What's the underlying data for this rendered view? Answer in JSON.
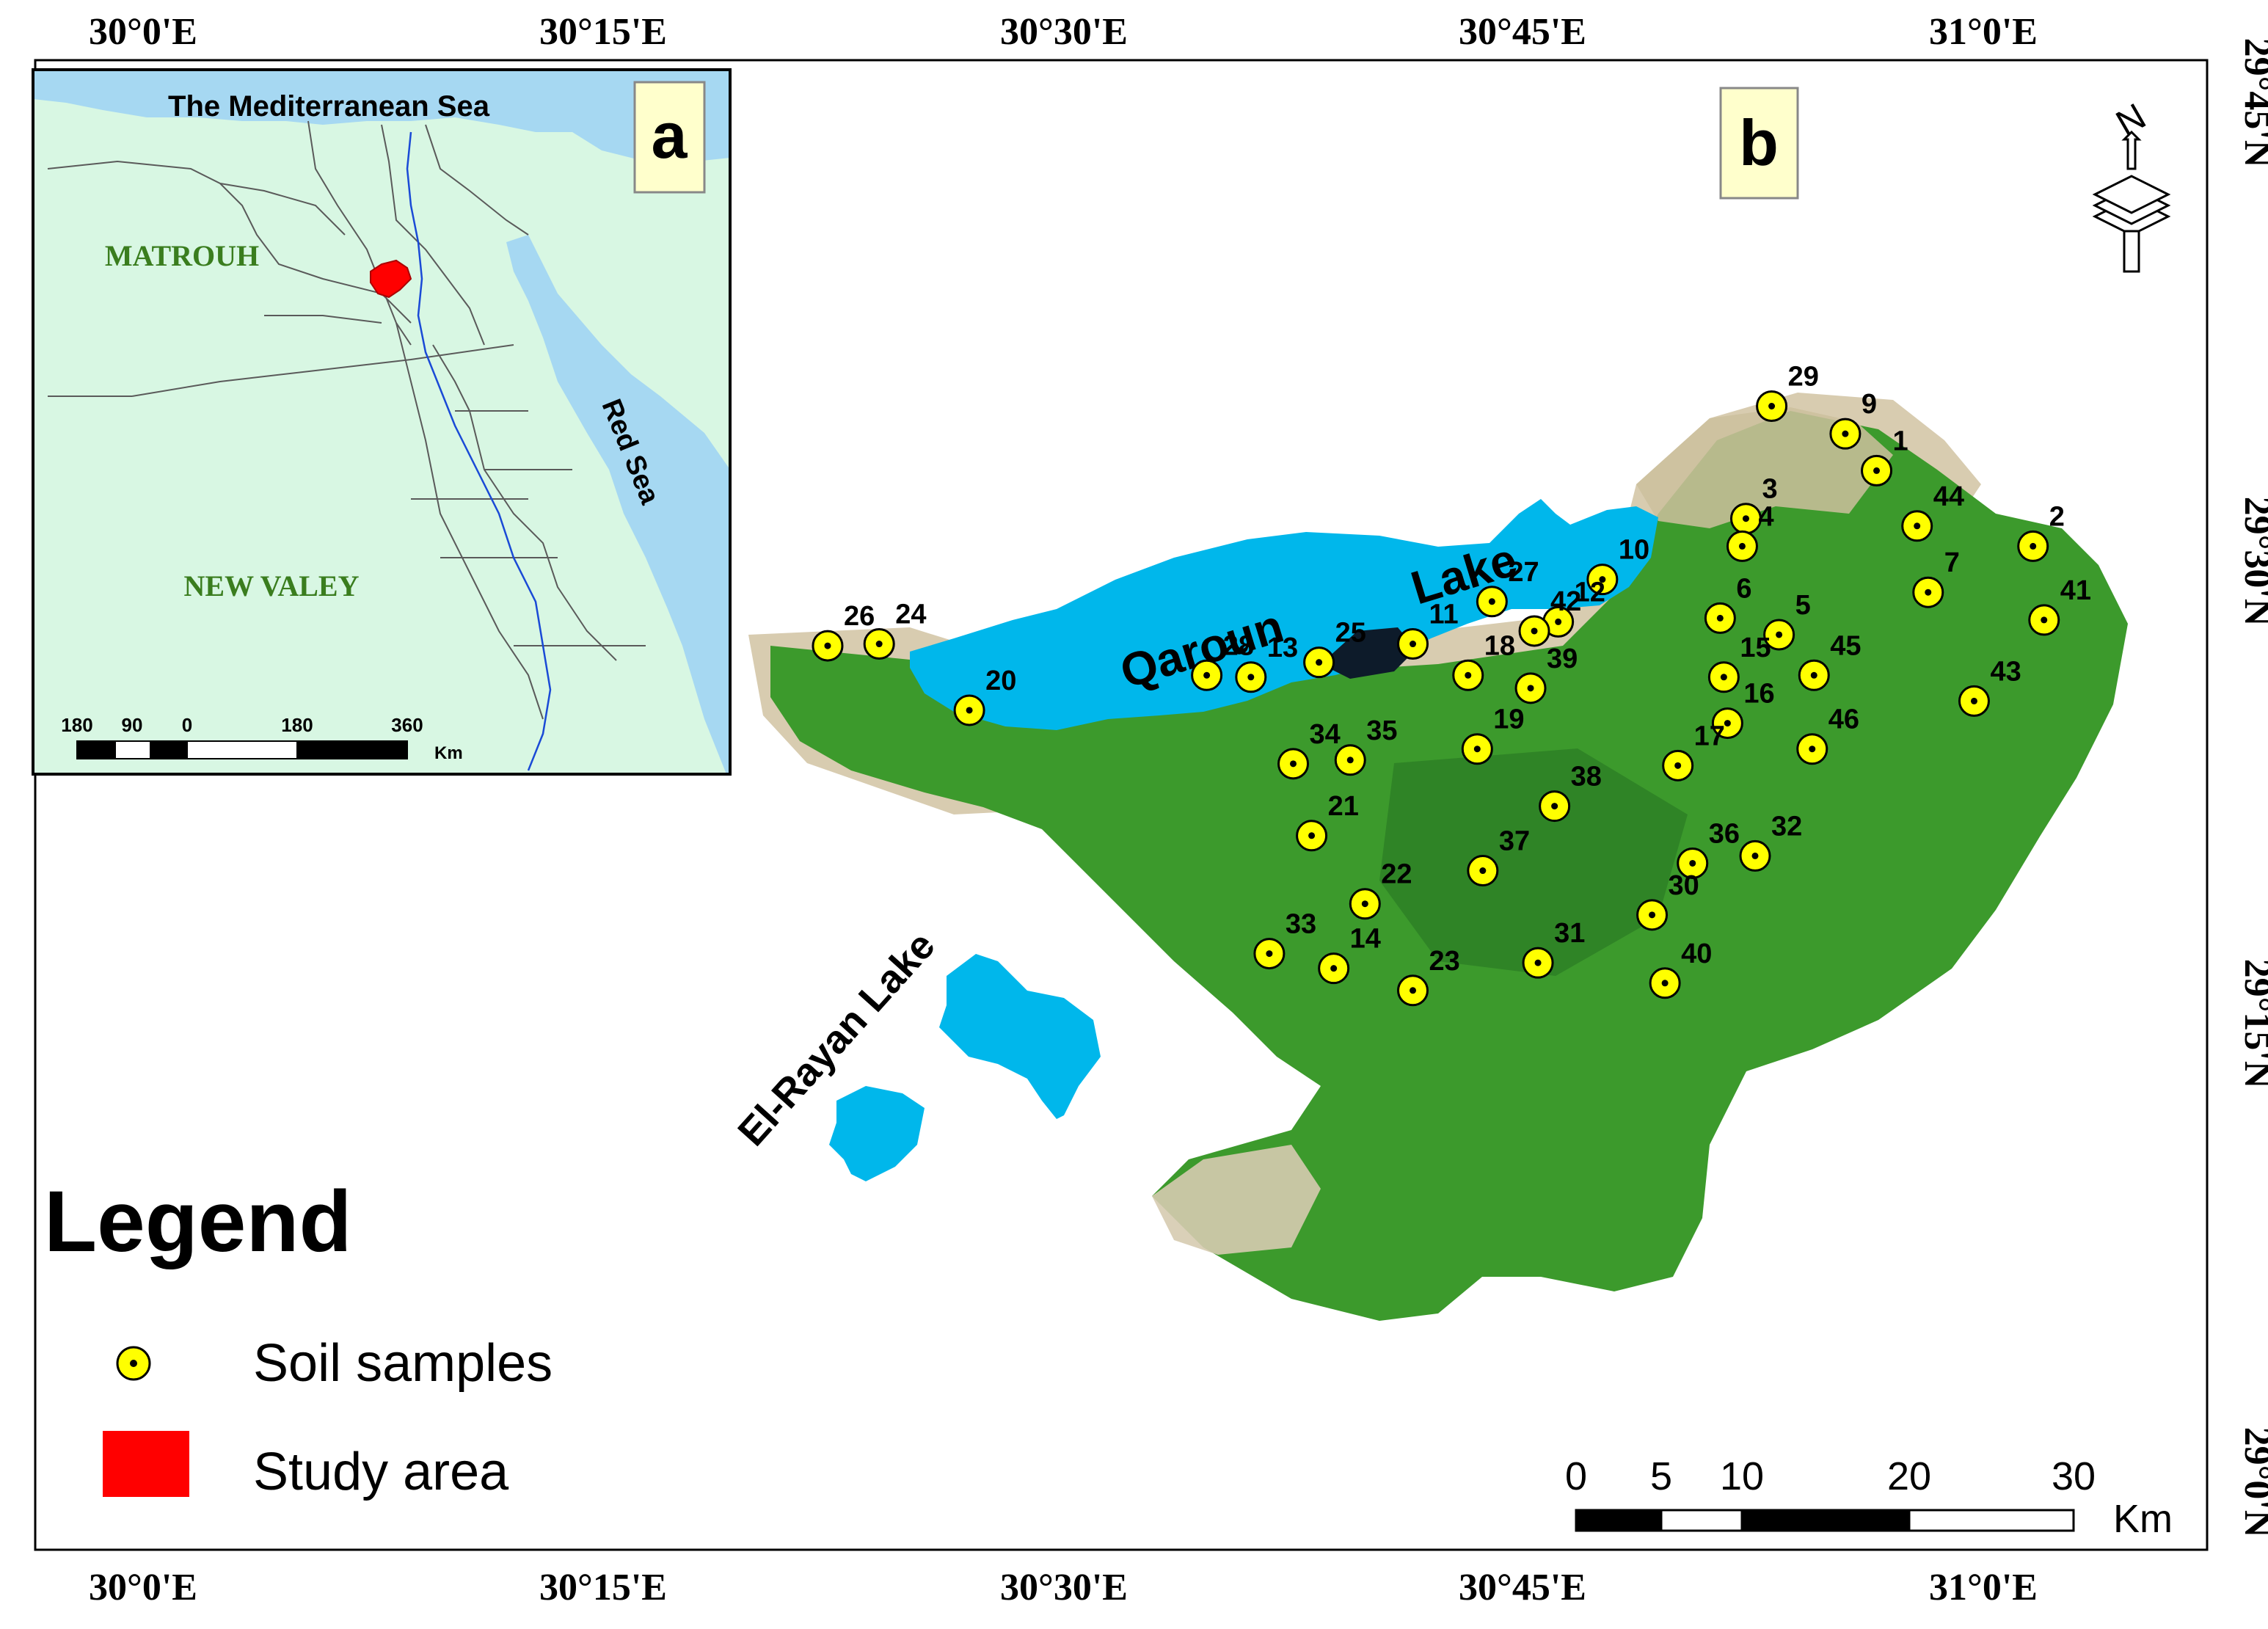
{
  "axes": {
    "lon_labels": [
      "30°0'E",
      "30°15'E",
      "30°30'E",
      "30°45'E",
      "31°0'E"
    ],
    "lat_labels": [
      "29°45'N",
      "29°30'N",
      "29°15'N",
      "29°0'N"
    ]
  },
  "inset": {
    "panel_label": "a",
    "sea_label": "The Mediterranean Sea",
    "red_sea_label": "Red Sea",
    "region_labels": [
      "MATROUH",
      "NEW VALEY"
    ],
    "scale_ticks": [
      "180",
      "90",
      "0",
      "180",
      "360"
    ],
    "scale_unit": "Km"
  },
  "main_map": {
    "panel_label": "b",
    "lake_labels": [
      "Qaroun",
      "Lake",
      "El-Rayan Lake"
    ],
    "north_letter": "N",
    "scale_ticks": [
      "0",
      "5",
      "10",
      "20",
      "30"
    ],
    "scale_unit": "Km"
  },
  "samples": [
    {
      "id": "29",
      "lon": 30.885,
      "lat": 29.583
    },
    {
      "id": "9",
      "lon": 30.925,
      "lat": 29.568
    },
    {
      "id": "1",
      "lon": 30.942,
      "lat": 29.548
    },
    {
      "id": "3",
      "lon": 30.871,
      "lat": 29.522
    },
    {
      "id": "44",
      "lon": 30.964,
      "lat": 29.518
    },
    {
      "id": "4",
      "lon": 30.869,
      "lat": 29.507
    },
    {
      "id": "2",
      "lon": 31.027,
      "lat": 29.507
    },
    {
      "id": "10",
      "lon": 30.793,
      "lat": 29.489
    },
    {
      "id": "7",
      "lon": 30.97,
      "lat": 29.482
    },
    {
      "id": "27",
      "lon": 30.733,
      "lat": 29.477
    },
    {
      "id": "12",
      "lon": 30.769,
      "lat": 29.466
    },
    {
      "id": "6",
      "lon": 30.857,
      "lat": 29.468
    },
    {
      "id": "41",
      "lon": 31.033,
      "lat": 29.467
    },
    {
      "id": "42",
      "lon": 30.756,
      "lat": 29.461
    },
    {
      "id": "5",
      "lon": 30.889,
      "lat": 29.459
    },
    {
      "id": "11",
      "lon": 30.69,
      "lat": 29.454
    },
    {
      "id": "26",
      "lon": 30.372,
      "lat": 29.453
    },
    {
      "id": "24",
      "lon": 30.4,
      "lat": 29.454
    },
    {
      "id": "18",
      "lon": 30.72,
      "lat": 29.437
    },
    {
      "id": "28",
      "lon": 30.578,
      "lat": 29.437
    },
    {
      "id": "13",
      "lon": 30.602,
      "lat": 29.436
    },
    {
      "id": "25",
      "lon": 30.639,
      "lat": 29.444
    },
    {
      "id": "15",
      "lon": 30.859,
      "lat": 29.436
    },
    {
      "id": "45",
      "lon": 30.908,
      "lat": 29.437
    },
    {
      "id": "39",
      "lon": 30.754,
      "lat": 29.43
    },
    {
      "id": "43",
      "lon": 30.995,
      "lat": 29.423
    },
    {
      "id": "20",
      "lon": 30.449,
      "lat": 29.418
    },
    {
      "id": "16",
      "lon": 30.861,
      "lat": 29.411
    },
    {
      "id": "19",
      "lon": 30.725,
      "lat": 29.397
    },
    {
      "id": "46",
      "lon": 30.907,
      "lat": 29.397
    },
    {
      "id": "34",
      "lon": 30.625,
      "lat": 29.389
    },
    {
      "id": "35",
      "lon": 30.656,
      "lat": 29.391
    },
    {
      "id": "17",
      "lon": 30.834,
      "lat": 29.388
    },
    {
      "id": "38",
      "lon": 30.767,
      "lat": 29.366
    },
    {
      "id": "32",
      "lon": 30.876,
      "lat": 29.339
    },
    {
      "id": "21",
      "lon": 30.635,
      "lat": 29.35
    },
    {
      "id": "36",
      "lon": 30.842,
      "lat": 29.335
    },
    {
      "id": "37",
      "lon": 30.728,
      "lat": 29.331
    },
    {
      "id": "22",
      "lon": 30.664,
      "lat": 29.313
    },
    {
      "id": "30",
      "lon": 30.82,
      "lat": 29.307
    },
    {
      "id": "33",
      "lon": 30.612,
      "lat": 29.286
    },
    {
      "id": "14",
      "lon": 30.647,
      "lat": 29.278
    },
    {
      "id": "31",
      "lon": 30.758,
      "lat": 29.281
    },
    {
      "id": "40",
      "lon": 30.827,
      "lat": 29.27
    },
    {
      "id": "23",
      "lon": 30.69,
      "lat": 29.266
    }
  ],
  "legend": {
    "title": "Legend",
    "items": [
      {
        "label": "Soil samples"
      },
      {
        "label": "Study area"
      }
    ]
  },
  "colors": {
    "water": "#00b7eb",
    "inset_water": "#a6d8f2",
    "inset_land": "#d8f7e3",
    "vegetation": "#3c9a2c",
    "vegetation_dark": "#2a7a24",
    "desert": "#d8ccb0",
    "study_area": "#ff0000",
    "sample_fill": "#ffff00",
    "label_box": "#ffffcc",
    "region_text": "#3a7d1e"
  }
}
